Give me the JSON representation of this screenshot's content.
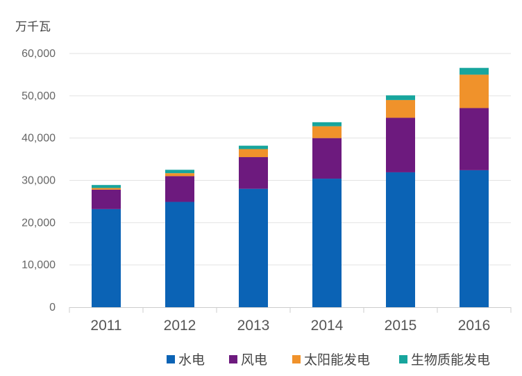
{
  "chart_data": {
    "type": "bar",
    "stacked": true,
    "unit_label": "万千瓦",
    "categories": [
      "2011",
      "2012",
      "2013",
      "2014",
      "2015",
      "2016"
    ],
    "y_ticks": [
      "0",
      "10,000",
      "20,000",
      "30,000",
      "40,000",
      "50,000",
      "60,000"
    ],
    "ylim": [
      0,
      60000
    ],
    "grid": true,
    "legend_position": "bottom-right",
    "series": [
      {
        "name": "水电",
        "color": "#0b63b5",
        "values": [
          23200,
          24900,
          28000,
          30400,
          31900,
          32400
        ]
      },
      {
        "name": "风电",
        "color": "#6d1a7e",
        "values": [
          4600,
          6100,
          7500,
          9600,
          12900,
          14700
        ]
      },
      {
        "name": "太阳能发电",
        "color": "#f0922b",
        "values": [
          400,
          700,
          1900,
          2800,
          4200,
          7900
        ]
      },
      {
        "name": "生物质能发电",
        "color": "#17a59d",
        "values": [
          700,
          800,
          800,
          950,
          1100,
          1600
        ]
      }
    ]
  }
}
